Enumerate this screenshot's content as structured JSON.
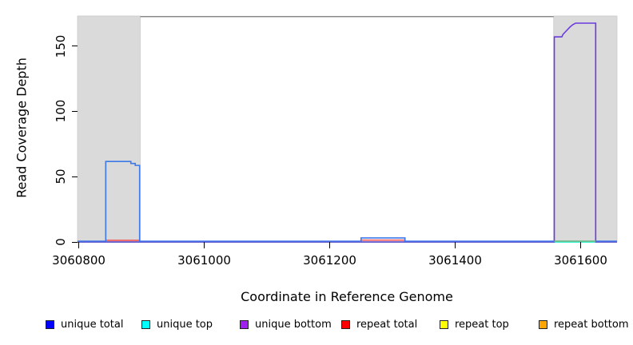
{
  "chart_data": {
    "type": "line",
    "title": "",
    "xlabel": "Coordinate in Reference Genome",
    "ylabel": "Read Coverage Depth",
    "xlim": [
      3060798,
      3061658
    ],
    "ylim": [
      0,
      173
    ],
    "x_ticks": [
      3060800,
      3061000,
      3061200,
      3061400,
      3061600
    ],
    "y_ticks": [
      0,
      50,
      100,
      150
    ],
    "grid": false,
    "legend_position": "bottom",
    "frame_color": "#8a8a8a",
    "shaded_regions": [
      {
        "name": "shaded-region-left",
        "start": 3060798,
        "end": 3060898,
        "color": "#dadada"
      },
      {
        "name": "shaded-region-right",
        "start": 3061557,
        "end": 3061658,
        "color": "#dadada"
      }
    ],
    "series": [
      {
        "key": "repeat_top",
        "name": "repeat top",
        "color": "#FFFF00",
        "line_color": "#FFFF00",
        "points": [
          [
            3060798,
            0
          ],
          [
            3061658,
            0
          ]
        ]
      },
      {
        "key": "repeat_bottom",
        "name": "repeat bottom",
        "color": "#FFA500",
        "line_color": "#FFA500",
        "points": [
          [
            3060798,
            0
          ],
          [
            3061658,
            0
          ]
        ]
      },
      {
        "key": "repeat_total",
        "name": "repeat total",
        "color": "#FF0000",
        "line_color": "#F25555",
        "points": [
          [
            3060798,
            0
          ],
          [
            3060843,
            0
          ],
          [
            3060843,
            1
          ],
          [
            3060897,
            1
          ],
          [
            3060897,
            0
          ],
          [
            3061250,
            0
          ],
          [
            3061250,
            1.2
          ],
          [
            3061320,
            1.2
          ],
          [
            3061320,
            0
          ],
          [
            3061658,
            0
          ]
        ]
      },
      {
        "key": "unique_top",
        "name": "unique top",
        "color": "#00FFFF",
        "line_color": "#00FFFF",
        "points": [
          [
            3060798,
            0
          ],
          [
            3061658,
            0
          ]
        ]
      },
      {
        "key": "unique_bottom",
        "name": "unique bottom",
        "color": "#A020F0",
        "line_color": "#6B3BE0",
        "points": [
          [
            3060798,
            0
          ],
          [
            3061558,
            0
          ],
          [
            3061558,
            157
          ],
          [
            3061570,
            157
          ],
          [
            3061572,
            159
          ],
          [
            3061576,
            161
          ],
          [
            3061580,
            163
          ],
          [
            3061584,
            165
          ],
          [
            3061588,
            166.5
          ],
          [
            3061592,
            167.5
          ],
          [
            3061624,
            167.5
          ],
          [
            3061624,
            0
          ],
          [
            3061658,
            0
          ]
        ]
      },
      {
        "key": "unique_total",
        "name": "unique total",
        "color": "#0000FF",
        "line_color": "#3C78E8",
        "points": [
          [
            3060798,
            0
          ],
          [
            3060843,
            0
          ],
          [
            3060843,
            61
          ],
          [
            3060883,
            61
          ],
          [
            3060883,
            59.5
          ],
          [
            3060890,
            59.5
          ],
          [
            3060890,
            58
          ],
          [
            3060897,
            58
          ],
          [
            3060897,
            0
          ],
          [
            3061250,
            0
          ],
          [
            3061250,
            2.5
          ],
          [
            3061320,
            2.5
          ],
          [
            3061320,
            0
          ],
          [
            3061658,
            0
          ]
        ]
      },
      {
        "key": "overlap_baseline",
        "name": "strand overlap baseline",
        "color": "#7CC47C",
        "line_color": "#7CC47C",
        "points": [
          [
            3061558,
            0
          ],
          [
            3061624,
            0
          ]
        ]
      }
    ]
  },
  "legend": {
    "items": [
      {
        "key": "unique_total",
        "label": "unique total",
        "color": "#0000FF"
      },
      {
        "key": "unique_top",
        "label": "unique top",
        "color": "#00FFFF"
      },
      {
        "key": "unique_bottom",
        "label": "unique bottom",
        "color": "#A020F0"
      },
      {
        "key": "repeat_total",
        "label": "repeat total",
        "color": "#FF0000"
      },
      {
        "key": "repeat_top",
        "label": "repeat top",
        "color": "#FFFF00"
      },
      {
        "key": "repeat_bottom",
        "label": "repeat bottom",
        "color": "#FFA500"
      }
    ]
  }
}
